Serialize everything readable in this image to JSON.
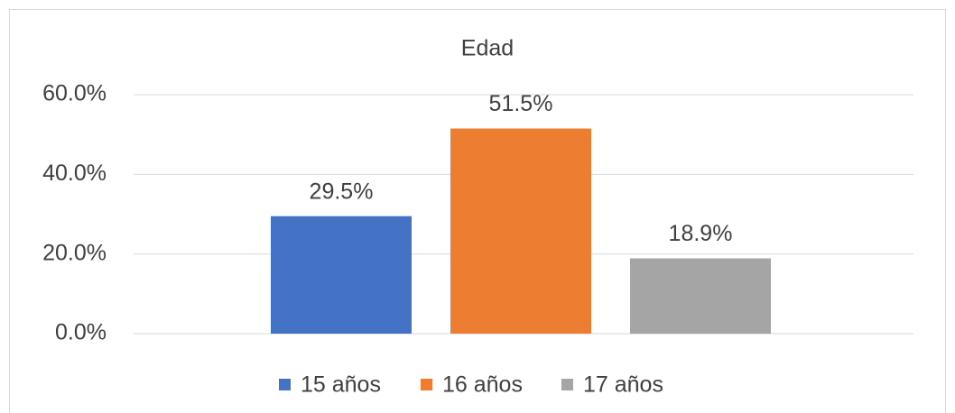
{
  "chart_data": {
    "type": "bar",
    "title": "Edad",
    "categories": [
      null
    ],
    "series": [
      {
        "name": "15 años",
        "color": "#4472c4",
        "values": [
          29.5
        ],
        "value_labels": [
          "29.5%"
        ]
      },
      {
        "name": "16 años",
        "color": "#ed7d31",
        "values": [
          51.5
        ],
        "value_labels": [
          "51.5%"
        ]
      },
      {
        "name": "17 años",
        "color": "#a5a5a5",
        "values": [
          18.9
        ],
        "value_labels": [
          "18.9%"
        ]
      }
    ],
    "ylim": [
      0,
      60
    ],
    "yticks": [
      {
        "value": 0,
        "label": "0.0%"
      },
      {
        "value": 20,
        "label": "20.0%"
      },
      {
        "value": 40,
        "label": "40.0%"
      },
      {
        "value": 60,
        "label": "60.0%"
      }
    ],
    "grid": true,
    "legend": "bottom"
  }
}
